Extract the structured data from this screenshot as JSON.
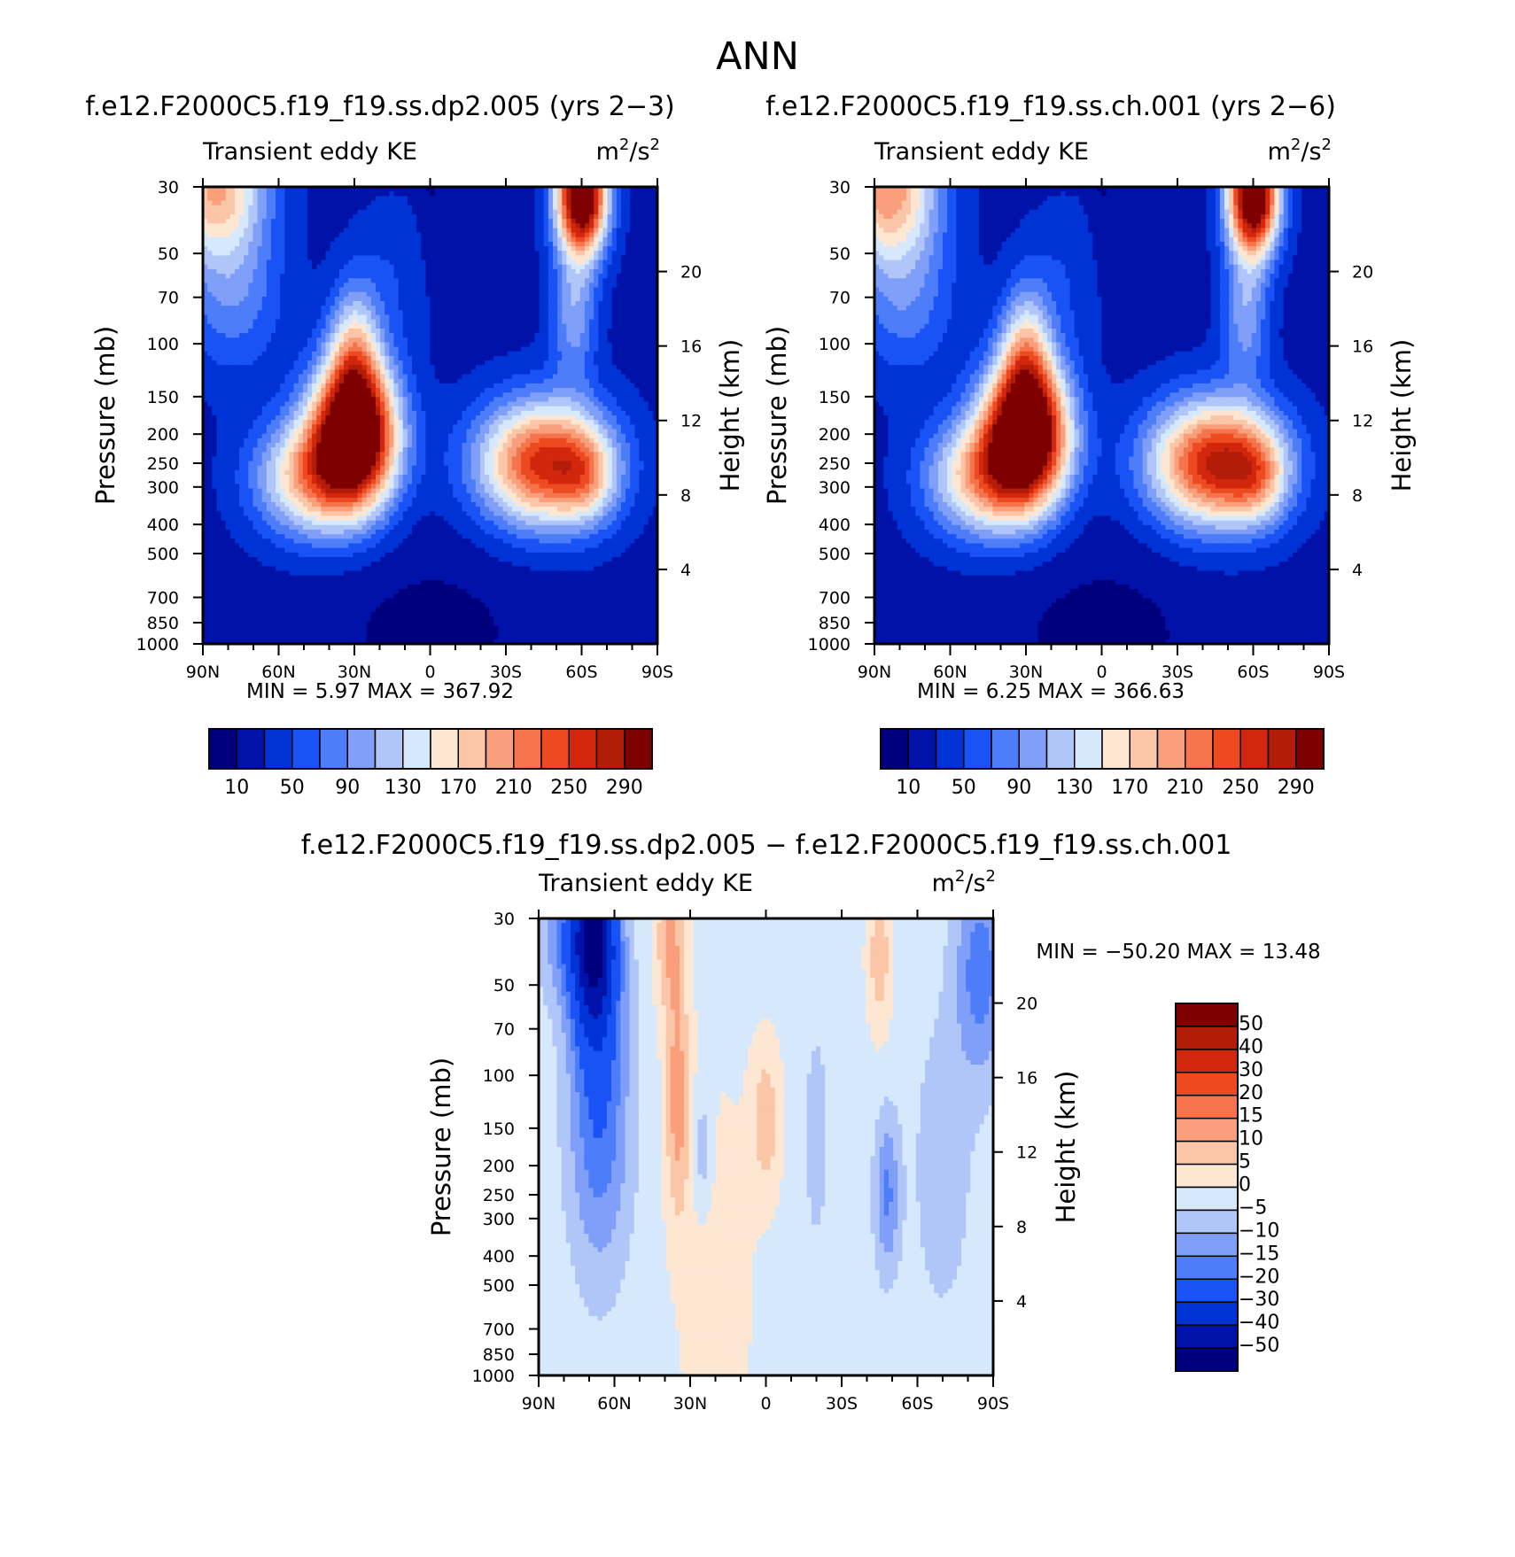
{
  "chart_data": {
    "title": "ANN",
    "pressure_ticks": [
      "30",
      "50",
      "70",
      "100",
      "150",
      "200",
      "250",
      "300",
      "400",
      "500",
      "700",
      "850",
      "1000"
    ],
    "pressure_values": [
      30,
      50,
      70,
      100,
      150,
      200,
      250,
      300,
      400,
      500,
      700,
      850,
      1000
    ],
    "height_ticks": [
      "20",
      "16",
      "12",
      "8",
      "4"
    ],
    "height_values": [
      20,
      16,
      12,
      8,
      4
    ],
    "lat_labels": [
      "90N",
      "60N",
      "30N",
      "0",
      "30S",
      "60S",
      "90S"
    ],
    "panels": [
      {
        "type": "heatmap",
        "subtitle": "f.e12.F2000C5.f19_f19.ss.dp2.005 (yrs 2−3)",
        "field_label": "Transient eddy KE",
        "units_base": "m",
        "units_exp": "2",
        "units_sep": "/s",
        "ylabel": "Pressure (mb)",
        "y2label": "Height (km)",
        "min_label": "MIN =",
        "min_value": "5.97",
        "max_label": "MAX =",
        "max_value": "367.92",
        "levels": [
          10,
          30,
          50,
          70,
          90,
          110,
          130,
          150,
          170,
          190,
          210,
          230,
          250,
          270,
          290
        ],
        "colorbar_labels": [
          "10",
          "50",
          "90",
          "130",
          "170",
          "210",
          "250",
          "290"
        ],
        "features": [
          {
            "lat": 30,
            "p": 200,
            "value": 367.92
          },
          {
            "lat": -60,
            "p": 30,
            "value": 330
          },
          {
            "lat": -45,
            "p": 260,
            "value": 260
          },
          {
            "lat": -60,
            "p": 260,
            "value": 270
          },
          {
            "lat": 80,
            "p": 30,
            "value": 170
          },
          {
            "lat": 0,
            "p": 1000,
            "value": 5.97
          }
        ]
      },
      {
        "type": "heatmap",
        "subtitle": "f.e12.F2000C5.f19_f19.ss.ch.001 (yrs 2−6)",
        "field_label": "Transient eddy KE",
        "units_base": "m",
        "units_exp": "2",
        "units_sep": "/s",
        "ylabel": "Pressure (mb)",
        "y2label": "Height (km)",
        "min_label": "MIN =",
        "min_value": "6.25",
        "max_label": "MAX =",
        "max_value": "366.63",
        "levels": [
          10,
          30,
          50,
          70,
          90,
          110,
          130,
          150,
          170,
          190,
          210,
          230,
          250,
          270,
          290
        ],
        "colorbar_labels": [
          "10",
          "50",
          "90",
          "130",
          "170",
          "210",
          "250",
          "290"
        ],
        "features": [
          {
            "lat": 30,
            "p": 200,
            "value": 366.63
          },
          {
            "lat": -60,
            "p": 30,
            "value": 340
          },
          {
            "lat": -50,
            "p": 260,
            "value": 260
          },
          {
            "lat": 80,
            "p": 30,
            "value": 190
          },
          {
            "lat": 0,
            "p": 1000,
            "value": 6.25
          }
        ]
      },
      {
        "type": "heatmap",
        "subtitle": "f.e12.F2000C5.f19_f19.ss.dp2.005 − f.e12.F2000C5.f19_f19.ss.ch.001",
        "field_label": "Transient eddy KE",
        "units_base": "m",
        "units_exp": "2",
        "units_sep": "/s",
        "ylabel": "Pressure (mb)",
        "y2label": "Height (km)",
        "min_label": "MIN =",
        "min_value": "−50.20",
        "max_label": "MAX =",
        "max_value": "13.48",
        "levels": [
          -50,
          -40,
          -30,
          -20,
          -15,
          -10,
          -5,
          0,
          5,
          10,
          15,
          20,
          30,
          40,
          50
        ],
        "colorbar_labels": [
          "50",
          "40",
          "30",
          "20",
          "15",
          "10",
          "5",
          "0",
          "−5",
          "−10",
          "−15",
          "−20",
          "−30",
          "−40",
          "−50"
        ],
        "features": [
          {
            "lat": 68,
            "p": 35,
            "value": -50.2
          },
          {
            "lat": 35,
            "p": 120,
            "value": 13.48
          },
          {
            "lat": -48,
            "p": 250,
            "value": -15
          },
          {
            "lat": -45,
            "p": 40,
            "value": 10
          }
        ]
      }
    ]
  },
  "colors": {
    "palette": [
      "#00007f",
      "#0012a8",
      "#0033d6",
      "#1a53f5",
      "#4d7df9",
      "#809ff8",
      "#b0c6f8",
      "#d6e8fb",
      "#fde7d3",
      "#fbc5a8",
      "#f99f7b",
      "#f6744b",
      "#ee4a22",
      "#d2270c",
      "#b31c08",
      "#7e0000"
    ]
  }
}
